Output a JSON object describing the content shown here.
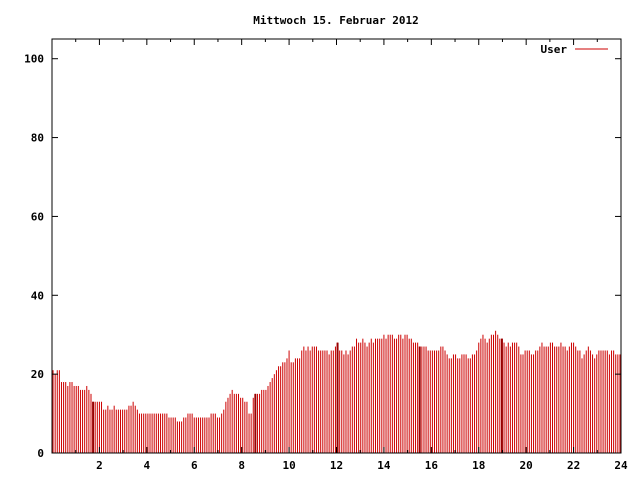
{
  "chart_data": {
    "type": "bar",
    "title": "Mittwoch 15. Februar 2012",
    "xlabel": "",
    "ylabel": "",
    "xlim": [
      0,
      24
    ],
    "ylim": [
      0,
      105
    ],
    "x_ticks": [
      2,
      4,
      6,
      8,
      10,
      12,
      14,
      16,
      18,
      20,
      22,
      24
    ],
    "y_ticks": [
      0,
      20,
      40,
      60,
      80,
      100
    ],
    "grid": false,
    "legend": "top-right",
    "series": [
      {
        "name": "User",
        "color": "#cc0000",
        "sample_interval_hours": 0.0833,
        "values": [
          21,
          20,
          21,
          21,
          18,
          18,
          18,
          17,
          18,
          18,
          17,
          17,
          17,
          16,
          16,
          16,
          17,
          16,
          15,
          13,
          13,
          13,
          13,
          13,
          11,
          11,
          12,
          11,
          11,
          12,
          11,
          11,
          11,
          11,
          11,
          11,
          12,
          12,
          13,
          12,
          11,
          10,
          10,
          10,
          10,
          10,
          10,
          10,
          10,
          10,
          10,
          10,
          10,
          10,
          10,
          9,
          9,
          9,
          9,
          8,
          8,
          8,
          9,
          9,
          10,
          10,
          10,
          9,
          9,
          9,
          9,
          9,
          9,
          9,
          9,
          10,
          10,
          10,
          9,
          9,
          10,
          11,
          13,
          14,
          15,
          16,
          15,
          15,
          15,
          14,
          14,
          13,
          13,
          10,
          10,
          14,
          15,
          15,
          15,
          16,
          16,
          16,
          17,
          18,
          19,
          20,
          21,
          22,
          22,
          23,
          23,
          24,
          26,
          23,
          23,
          24,
          24,
          24,
          26,
          27,
          26,
          27,
          26,
          27,
          27,
          27,
          26,
          26,
          26,
          26,
          26,
          25,
          26,
          26,
          27,
          28,
          26,
          26,
          25,
          26,
          25,
          26,
          27,
          27,
          29,
          28,
          28,
          29,
          28,
          27,
          28,
          29,
          28,
          29,
          29,
          29,
          29,
          30,
          29,
          30,
          30,
          30,
          29,
          29,
          30,
          30,
          29,
          30,
          30,
          29,
          29,
          28,
          28,
          28,
          27,
          27,
          27,
          27,
          26,
          26,
          26,
          26,
          26,
          26,
          27,
          27,
          26,
          25,
          24,
          24,
          25,
          25,
          24,
          24,
          25,
          25,
          25,
          24,
          24,
          25,
          25,
          26,
          28,
          29,
          30,
          29,
          28,
          29,
          30,
          30,
          31,
          30,
          29,
          29,
          28,
          27,
          28,
          27,
          28,
          28,
          28,
          27,
          25,
          25,
          26,
          26,
          26,
          25,
          25,
          26,
          26,
          27,
          28,
          27,
          27,
          27,
          28,
          28,
          27,
          27,
          27,
          28,
          27,
          27,
          26,
          27,
          28,
          28,
          27,
          26,
          26,
          24,
          25,
          26,
          27,
          26,
          25,
          24,
          25,
          26,
          26,
          26,
          26,
          26,
          25,
          26,
          26,
          25,
          25,
          25
        ]
      }
    ],
    "darker_bar_markers_x": [
      1.75,
      8.6,
      12.0,
      15.5,
      19.0
    ]
  }
}
